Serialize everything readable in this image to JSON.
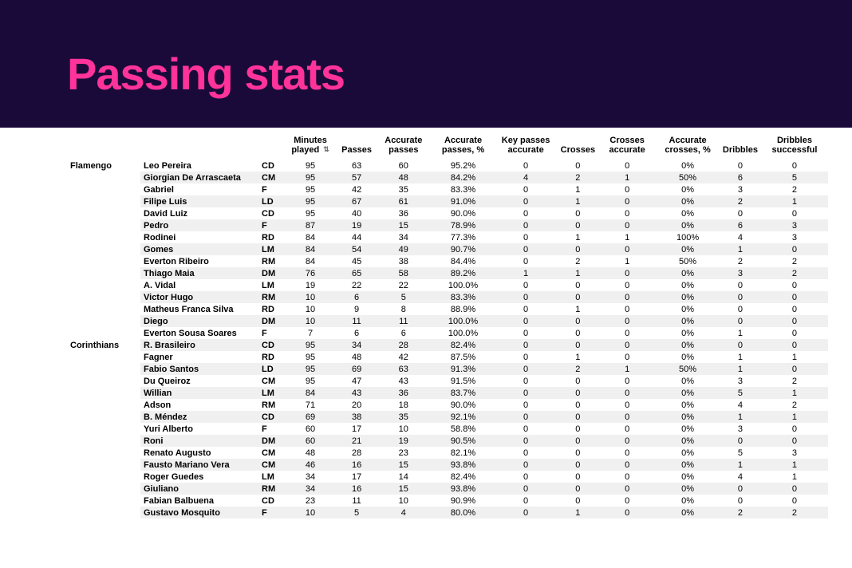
{
  "header": {
    "title": "Passing stats"
  },
  "table": {
    "columns": [
      {
        "key": "minutes",
        "label": "Minutes played",
        "sorted": true
      },
      {
        "key": "passes",
        "label": "Passes"
      },
      {
        "key": "acc_passes",
        "label": "Accurate passes"
      },
      {
        "key": "acc_pct",
        "label": "Accurate passes, %"
      },
      {
        "key": "key_acc",
        "label": "Key passes accurate"
      },
      {
        "key": "crosses",
        "label": "Crosses"
      },
      {
        "key": "crosses_acc",
        "label": "Crosses accurate"
      },
      {
        "key": "cross_pct",
        "label": "Accurate crosses, %"
      },
      {
        "key": "dribbles",
        "label": "Dribbles"
      },
      {
        "key": "drib_succ",
        "label": "Dribbles successful"
      }
    ],
    "groups": [
      {
        "team": "Flamengo",
        "rows": [
          {
            "player": "Leo Pereira",
            "pos": "CD",
            "minutes": "95",
            "passes": "63",
            "acc_passes": "60",
            "acc_pct": "95.2%",
            "key_acc": "0",
            "crosses": "0",
            "crosses_acc": "0",
            "cross_pct": "0%",
            "dribbles": "0",
            "drib_succ": "0"
          },
          {
            "player": "Giorgian De Arrascaeta",
            "pos": "CM",
            "minutes": "95",
            "passes": "57",
            "acc_passes": "48",
            "acc_pct": "84.2%",
            "key_acc": "4",
            "crosses": "2",
            "crosses_acc": "1",
            "cross_pct": "50%",
            "dribbles": "6",
            "drib_succ": "5"
          },
          {
            "player": "Gabriel",
            "pos": "F",
            "minutes": "95",
            "passes": "42",
            "acc_passes": "35",
            "acc_pct": "83.3%",
            "key_acc": "0",
            "crosses": "1",
            "crosses_acc": "0",
            "cross_pct": "0%",
            "dribbles": "3",
            "drib_succ": "2"
          },
          {
            "player": "Filipe Luis",
            "pos": "LD",
            "minutes": "95",
            "passes": "67",
            "acc_passes": "61",
            "acc_pct": "91.0%",
            "key_acc": "0",
            "crosses": "1",
            "crosses_acc": "0",
            "cross_pct": "0%",
            "dribbles": "2",
            "drib_succ": "1"
          },
          {
            "player": "David Luiz",
            "pos": "CD",
            "minutes": "95",
            "passes": "40",
            "acc_passes": "36",
            "acc_pct": "90.0%",
            "key_acc": "0",
            "crosses": "0",
            "crosses_acc": "0",
            "cross_pct": "0%",
            "dribbles": "0",
            "drib_succ": "0"
          },
          {
            "player": "Pedro",
            "pos": "F",
            "minutes": "87",
            "passes": "19",
            "acc_passes": "15",
            "acc_pct": "78.9%",
            "key_acc": "0",
            "crosses": "0",
            "crosses_acc": "0",
            "cross_pct": "0%",
            "dribbles": "6",
            "drib_succ": "3"
          },
          {
            "player": "Rodinei",
            "pos": "RD",
            "minutes": "84",
            "passes": "44",
            "acc_passes": "34",
            "acc_pct": "77.3%",
            "key_acc": "0",
            "crosses": "1",
            "crosses_acc": "1",
            "cross_pct": "100%",
            "dribbles": "4",
            "drib_succ": "3"
          },
          {
            "player": "Gomes",
            "pos": "LM",
            "minutes": "84",
            "passes": "54",
            "acc_passes": "49",
            "acc_pct": "90.7%",
            "key_acc": "0",
            "crosses": "0",
            "crosses_acc": "0",
            "cross_pct": "0%",
            "dribbles": "1",
            "drib_succ": "0"
          },
          {
            "player": "Everton Ribeiro",
            "pos": "RM",
            "minutes": "84",
            "passes": "45",
            "acc_passes": "38",
            "acc_pct": "84.4%",
            "key_acc": "0",
            "crosses": "2",
            "crosses_acc": "1",
            "cross_pct": "50%",
            "dribbles": "2",
            "drib_succ": "2"
          },
          {
            "player": "Thiago Maia",
            "pos": "DM",
            "minutes": "76",
            "passes": "65",
            "acc_passes": "58",
            "acc_pct": "89.2%",
            "key_acc": "1",
            "crosses": "1",
            "crosses_acc": "0",
            "cross_pct": "0%",
            "dribbles": "3",
            "drib_succ": "2"
          },
          {
            "player": "A. Vidal",
            "pos": "LM",
            "minutes": "19",
            "passes": "22",
            "acc_passes": "22",
            "acc_pct": "100.0%",
            "key_acc": "0",
            "crosses": "0",
            "crosses_acc": "0",
            "cross_pct": "0%",
            "dribbles": "0",
            "drib_succ": "0"
          },
          {
            "player": "Victor Hugo",
            "pos": "RM",
            "minutes": "10",
            "passes": "6",
            "acc_passes": "5",
            "acc_pct": "83.3%",
            "key_acc": "0",
            "crosses": "0",
            "crosses_acc": "0",
            "cross_pct": "0%",
            "dribbles": "0",
            "drib_succ": "0"
          },
          {
            "player": "Matheus Franca Silva",
            "pos": "RD",
            "minutes": "10",
            "passes": "9",
            "acc_passes": "8",
            "acc_pct": "88.9%",
            "key_acc": "0",
            "crosses": "1",
            "crosses_acc": "0",
            "cross_pct": "0%",
            "dribbles": "0",
            "drib_succ": "0"
          },
          {
            "player": "Diego",
            "pos": "DM",
            "minutes": "10",
            "passes": "11",
            "acc_passes": "11",
            "acc_pct": "100.0%",
            "key_acc": "0",
            "crosses": "0",
            "crosses_acc": "0",
            "cross_pct": "0%",
            "dribbles": "0",
            "drib_succ": "0"
          },
          {
            "player": "Everton Sousa Soares",
            "pos": "F",
            "minutes": "7",
            "passes": "6",
            "acc_passes": "6",
            "acc_pct": "100.0%",
            "key_acc": "0",
            "crosses": "0",
            "crosses_acc": "0",
            "cross_pct": "0%",
            "dribbles": "1",
            "drib_succ": "0"
          }
        ]
      },
      {
        "team": "Corinthians",
        "rows": [
          {
            "player": "R. Brasileiro",
            "pos": "CD",
            "minutes": "95",
            "passes": "34",
            "acc_passes": "28",
            "acc_pct": "82.4%",
            "key_acc": "0",
            "crosses": "0",
            "crosses_acc": "0",
            "cross_pct": "0%",
            "dribbles": "0",
            "drib_succ": "0"
          },
          {
            "player": "Fagner",
            "pos": "RD",
            "minutes": "95",
            "passes": "48",
            "acc_passes": "42",
            "acc_pct": "87.5%",
            "key_acc": "0",
            "crosses": "1",
            "crosses_acc": "0",
            "cross_pct": "0%",
            "dribbles": "1",
            "drib_succ": "1"
          },
          {
            "player": "Fabio Santos",
            "pos": "LD",
            "minutes": "95",
            "passes": "69",
            "acc_passes": "63",
            "acc_pct": "91.3%",
            "key_acc": "0",
            "crosses": "2",
            "crosses_acc": "1",
            "cross_pct": "50%",
            "dribbles": "1",
            "drib_succ": "0"
          },
          {
            "player": "Du Queiroz",
            "pos": "CM",
            "minutes": "95",
            "passes": "47",
            "acc_passes": "43",
            "acc_pct": "91.5%",
            "key_acc": "0",
            "crosses": "0",
            "crosses_acc": "0",
            "cross_pct": "0%",
            "dribbles": "3",
            "drib_succ": "2"
          },
          {
            "player": "Willian",
            "pos": "LM",
            "minutes": "84",
            "passes": "43",
            "acc_passes": "36",
            "acc_pct": "83.7%",
            "key_acc": "0",
            "crosses": "0",
            "crosses_acc": "0",
            "cross_pct": "0%",
            "dribbles": "5",
            "drib_succ": "1"
          },
          {
            "player": "Adson",
            "pos": "RM",
            "minutes": "71",
            "passes": "20",
            "acc_passes": "18",
            "acc_pct": "90.0%",
            "key_acc": "0",
            "crosses": "0",
            "crosses_acc": "0",
            "cross_pct": "0%",
            "dribbles": "4",
            "drib_succ": "2"
          },
          {
            "player": "B. Méndez",
            "pos": "CD",
            "minutes": "69",
            "passes": "38",
            "acc_passes": "35",
            "acc_pct": "92.1%",
            "key_acc": "0",
            "crosses": "0",
            "crosses_acc": "0",
            "cross_pct": "0%",
            "dribbles": "1",
            "drib_succ": "1"
          },
          {
            "player": "Yuri Alberto",
            "pos": "F",
            "minutes": "60",
            "passes": "17",
            "acc_passes": "10",
            "acc_pct": "58.8%",
            "key_acc": "0",
            "crosses": "0",
            "crosses_acc": "0",
            "cross_pct": "0%",
            "dribbles": "3",
            "drib_succ": "0"
          },
          {
            "player": "Roni",
            "pos": "DM",
            "minutes": "60",
            "passes": "21",
            "acc_passes": "19",
            "acc_pct": "90.5%",
            "key_acc": "0",
            "crosses": "0",
            "crosses_acc": "0",
            "cross_pct": "0%",
            "dribbles": "0",
            "drib_succ": "0"
          },
          {
            "player": "Renato Augusto",
            "pos": "CM",
            "minutes": "48",
            "passes": "28",
            "acc_passes": "23",
            "acc_pct": "82.1%",
            "key_acc": "0",
            "crosses": "0",
            "crosses_acc": "0",
            "cross_pct": "0%",
            "dribbles": "5",
            "drib_succ": "3"
          },
          {
            "player": "Fausto Mariano Vera",
            "pos": "CM",
            "minutes": "46",
            "passes": "16",
            "acc_passes": "15",
            "acc_pct": "93.8%",
            "key_acc": "0",
            "crosses": "0",
            "crosses_acc": "0",
            "cross_pct": "0%",
            "dribbles": "1",
            "drib_succ": "1"
          },
          {
            "player": "Roger Guedes",
            "pos": "LM",
            "minutes": "34",
            "passes": "17",
            "acc_passes": "14",
            "acc_pct": "82.4%",
            "key_acc": "0",
            "crosses": "0",
            "crosses_acc": "0",
            "cross_pct": "0%",
            "dribbles": "4",
            "drib_succ": "1"
          },
          {
            "player": "Giuliano",
            "pos": "RM",
            "minutes": "34",
            "passes": "16",
            "acc_passes": "15",
            "acc_pct": "93.8%",
            "key_acc": "0",
            "crosses": "0",
            "crosses_acc": "0",
            "cross_pct": "0%",
            "dribbles": "0",
            "drib_succ": "0"
          },
          {
            "player": "Fabian Balbuena",
            "pos": "CD",
            "minutes": "23",
            "passes": "11",
            "acc_passes": "10",
            "acc_pct": "90.9%",
            "key_acc": "0",
            "crosses": "0",
            "crosses_acc": "0",
            "cross_pct": "0%",
            "dribbles": "0",
            "drib_succ": "0"
          },
          {
            "player": "Gustavo Mosquito",
            "pos": "F",
            "minutes": "10",
            "passes": "5",
            "acc_passes": "4",
            "acc_pct": "80.0%",
            "key_acc": "0",
            "crosses": "1",
            "crosses_acc": "0",
            "cross_pct": "0%",
            "dribbles": "2",
            "drib_succ": "2"
          }
        ]
      }
    ]
  },
  "colors": {
    "header_bg": "#1a0a3a",
    "title": "#ff3399",
    "row_alt": "#f0f0f0",
    "text": "#000000"
  }
}
